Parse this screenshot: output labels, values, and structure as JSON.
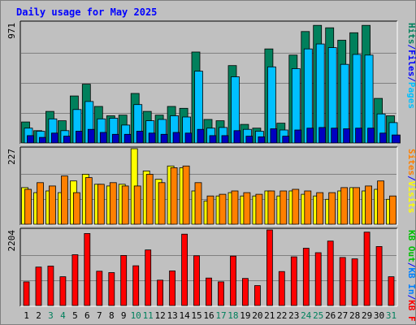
{
  "title": "Daily usage for May 2025",
  "chart_data": [
    {
      "type": "bar",
      "name": "pages-files-hits",
      "ymax_label": "971",
      "ylim": [
        0,
        971
      ],
      "legend": [
        {
          "label": "Pages",
          "color": "#00c0ff"
        },
        {
          "label": "/",
          "color": "#0000ff"
        },
        {
          "label": "Files",
          "color": "#0000ff"
        },
        {
          "label": "/",
          "color": "#0000ff"
        },
        {
          "label": "Hits",
          "color": "#00805c"
        }
      ],
      "series": [
        {
          "name": "Hits",
          "color": "#00805c",
          "values": [
            170,
            100,
            255,
            180,
            380,
            475,
            295,
            220,
            225,
            400,
            255,
            225,
            295,
            280,
            735,
            190,
            180,
            625,
            150,
            120,
            760,
            160,
            710,
            900,
            950,
            930,
            830,
            890,
            950,
            360,
            220
          ]
        },
        {
          "name": "Files",
          "color": "#00c0ff",
          "values": [
            120,
            95,
            195,
            100,
            270,
            335,
            195,
            200,
            145,
            310,
            180,
            190,
            220,
            210,
            580,
            120,
            125,
            535,
            110,
            95,
            615,
            105,
            600,
            760,
            800,
            770,
            635,
            715,
            710,
            235,
            165
          ]
        },
        {
          "name": "Pages",
          "color": "#0000c0",
          "values": [
            60,
            45,
            80,
            55,
            95,
            110,
            85,
            70,
            70,
            95,
            80,
            70,
            85,
            80,
            110,
            60,
            60,
            100,
            55,
            50,
            115,
            55,
            105,
            120,
            125,
            120,
            115,
            120,
            120,
            80,
            65
          ]
        }
      ]
    },
    {
      "type": "bar",
      "name": "visits-sites",
      "ymax_label": "227",
      "ylim": [
        0,
        227
      ],
      "legend": [
        {
          "label": "Visits",
          "color": "#ffff00"
        },
        {
          "label": "/",
          "color": "#0000ff"
        },
        {
          "label": "Sites",
          "color": "#ff8000"
        }
      ],
      "series": [
        {
          "name": "Visits",
          "color": "#ffff00",
          "values": [
            110,
            95,
            100,
            95,
            130,
            150,
            120,
            115,
            120,
            227,
            160,
            135,
            175,
            170,
            100,
            70,
            85,
            95,
            85,
            85,
            100,
            85,
            100,
            90,
            85,
            75,
            100,
            110,
            100,
            105,
            75
          ]
        },
        {
          "name": "Sites",
          "color": "#ff8000",
          "values": [
            105,
            125,
            115,
            145,
            95,
            140,
            120,
            125,
            115,
            115,
            150,
            125,
            170,
            175,
            125,
            85,
            90,
            100,
            95,
            90,
            100,
            100,
            105,
            100,
            95,
            95,
            110,
            110,
            115,
            130,
            85
          ]
        }
      ]
    },
    {
      "type": "bar",
      "name": "kbytes",
      "ymax_label": "2204",
      "ylim": [
        0,
        2204
      ],
      "legend": [
        {
          "label": "KB F",
          "color": "#ff0000"
        },
        {
          "label": "/",
          "color": "#0000ff"
        },
        {
          "label": "KB In",
          "color": "#0080ff"
        },
        {
          "label": "/",
          "color": "#0000ff"
        },
        {
          "label": "KB Out",
          "color": "#00c000"
        }
      ],
      "series": [
        {
          "name": "KB F",
          "color": "#ff0000",
          "values": [
            690,
            1120,
            1150,
            840,
            1480,
            2100,
            1000,
            960,
            1460,
            1160,
            1620,
            740,
            1010,
            2080,
            1450,
            800,
            690,
            1440,
            790,
            580,
            2204,
            990,
            1420,
            1670,
            1540,
            1880,
            1400,
            1360,
            2140,
            1720,
            840
          ]
        }
      ]
    }
  ],
  "x_labels": [
    "1",
    "2",
    "3",
    "4",
    "5",
    "6",
    "7",
    "8",
    "9",
    "10",
    "11",
    "12",
    "13",
    "14",
    "15",
    "16",
    "17",
    "18",
    "19",
    "20",
    "21",
    "22",
    "23",
    "24",
    "25",
    "26",
    "27",
    "28",
    "29",
    "30",
    "31"
  ],
  "x_label_colors": [
    "#000000",
    "#000000",
    "#00805c",
    "#00805c",
    "#000000",
    "#000000",
    "#000000",
    "#000000",
    "#000000",
    "#00805c",
    "#00805c",
    "#000000",
    "#000000",
    "#000000",
    "#000000",
    "#000000",
    "#00805c",
    "#00805c",
    "#000000",
    "#000000",
    "#000000",
    "#000000",
    "#000000",
    "#00805c",
    "#00805c",
    "#000000",
    "#000000",
    "#000000",
    "#000000",
    "#000000",
    "#00805c"
  ]
}
